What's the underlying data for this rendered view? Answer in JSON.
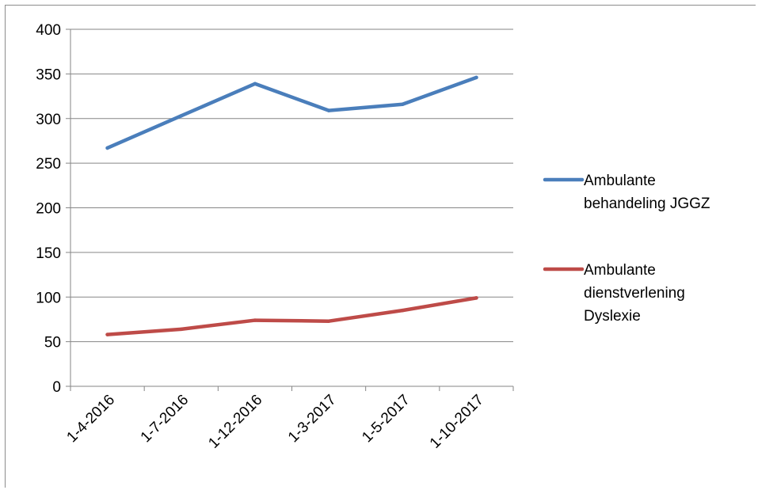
{
  "chart_data": {
    "type": "line",
    "categories": [
      "1-4-2016",
      "1-7-2016",
      "1-12-2016",
      "1-3-2017",
      "1-5-2017",
      "1-10-2017"
    ],
    "series": [
      {
        "name": "Ambulante behandeling JGGZ",
        "name_lines": [
          "Ambulante",
          "behandeling JGGZ"
        ],
        "color": "#4a7ebb",
        "values": [
          267,
          303,
          339,
          309,
          316,
          346
        ]
      },
      {
        "name": "Ambulante dienstverlening Dyslexie",
        "name_lines": [
          "Ambulante",
          "dienstverlening",
          "Dyslexie"
        ],
        "color": "#be4b48",
        "values": [
          58,
          64,
          74,
          73,
          85,
          99
        ]
      }
    ],
    "yticks": [
      0,
      50,
      100,
      150,
      200,
      250,
      300,
      350,
      400
    ],
    "ylim": [
      0,
      400
    ],
    "grid": true,
    "legend_position": "right",
    "title": "",
    "xlabel": "",
    "ylabel": ""
  }
}
